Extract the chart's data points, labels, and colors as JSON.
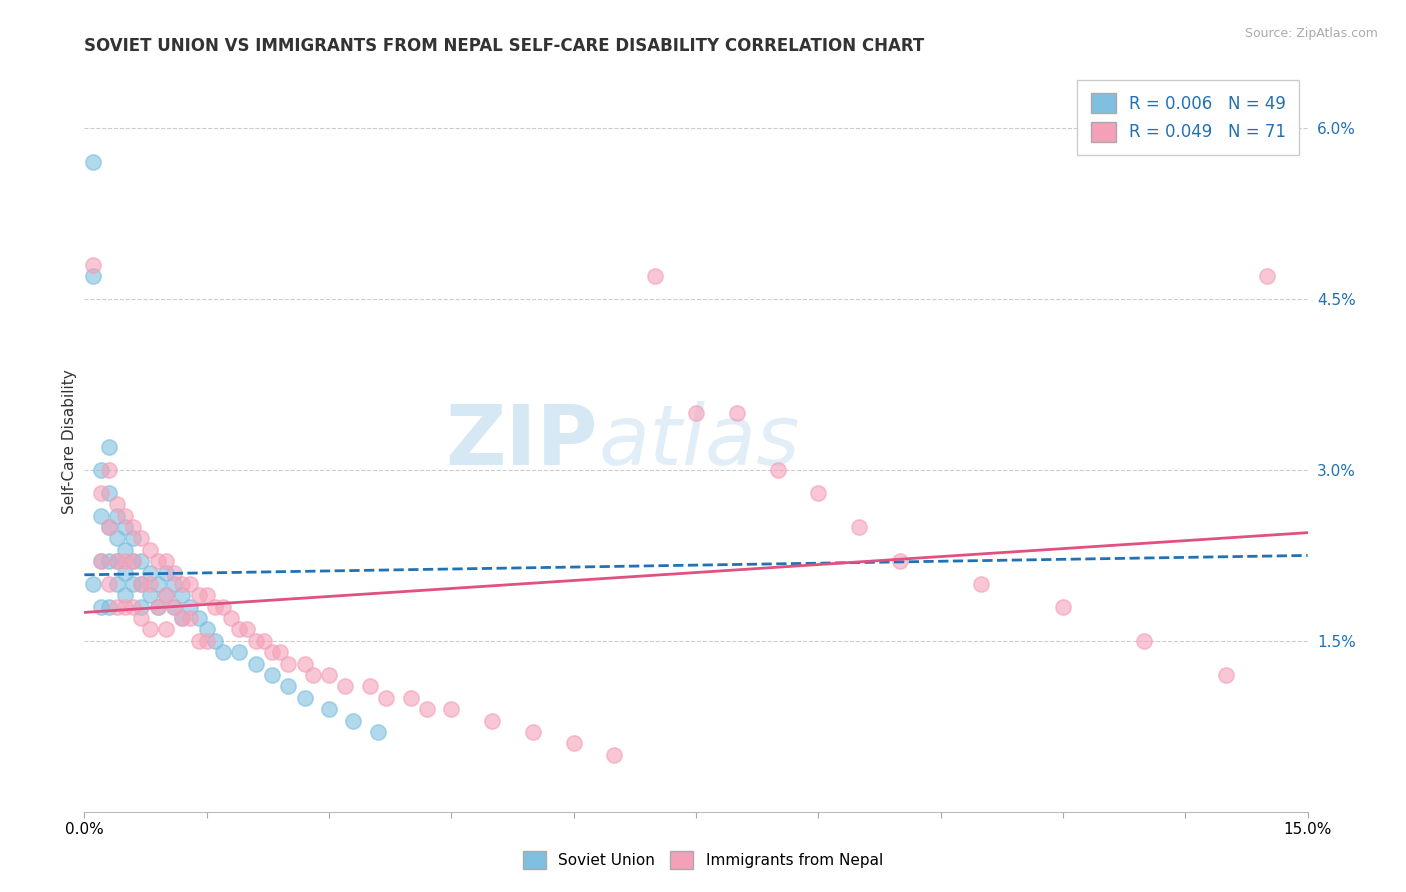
{
  "title": "SOVIET UNION VS IMMIGRANTS FROM NEPAL SELF-CARE DISABILITY CORRELATION CHART",
  "source": "Source: ZipAtlas.com",
  "ylabel": "Self-Care Disability",
  "xlim": [
    0.0,
    0.15
  ],
  "ylim": [
    0.0,
    0.065
  ],
  "blue_color": "#7fbfdf",
  "pink_color": "#f4a0b8",
  "blue_line_color": "#2171b5",
  "pink_line_color": "#e05080",
  "legend_R_blue": "R = 0.006",
  "legend_N_blue": "N = 49",
  "legend_R_pink": "R = 0.049",
  "legend_N_pink": "N = 71",
  "blue_scatter_x": [
    0.001,
    0.001,
    0.001,
    0.002,
    0.002,
    0.002,
    0.002,
    0.003,
    0.003,
    0.003,
    0.003,
    0.003,
    0.004,
    0.004,
    0.004,
    0.004,
    0.005,
    0.005,
    0.005,
    0.005,
    0.006,
    0.006,
    0.006,
    0.007,
    0.007,
    0.007,
    0.008,
    0.008,
    0.009,
    0.009,
    0.01,
    0.01,
    0.011,
    0.011,
    0.012,
    0.012,
    0.013,
    0.014,
    0.015,
    0.016,
    0.017,
    0.019,
    0.021,
    0.023,
    0.025,
    0.027,
    0.03,
    0.033,
    0.036
  ],
  "blue_scatter_y": [
    0.057,
    0.047,
    0.02,
    0.03,
    0.026,
    0.022,
    0.018,
    0.032,
    0.028,
    0.025,
    0.022,
    0.018,
    0.026,
    0.024,
    0.022,
    0.02,
    0.025,
    0.023,
    0.021,
    0.019,
    0.024,
    0.022,
    0.02,
    0.022,
    0.02,
    0.018,
    0.021,
    0.019,
    0.02,
    0.018,
    0.021,
    0.019,
    0.02,
    0.018,
    0.019,
    0.017,
    0.018,
    0.017,
    0.016,
    0.015,
    0.014,
    0.014,
    0.013,
    0.012,
    0.011,
    0.01,
    0.009,
    0.008,
    0.007
  ],
  "pink_scatter_x": [
    0.001,
    0.002,
    0.002,
    0.003,
    0.003,
    0.003,
    0.004,
    0.004,
    0.004,
    0.005,
    0.005,
    0.005,
    0.006,
    0.006,
    0.006,
    0.007,
    0.007,
    0.007,
    0.008,
    0.008,
    0.008,
    0.009,
    0.009,
    0.01,
    0.01,
    0.01,
    0.011,
    0.011,
    0.012,
    0.012,
    0.013,
    0.013,
    0.014,
    0.014,
    0.015,
    0.015,
    0.016,
    0.017,
    0.018,
    0.019,
    0.02,
    0.021,
    0.022,
    0.023,
    0.024,
    0.025,
    0.027,
    0.028,
    0.03,
    0.032,
    0.035,
    0.037,
    0.04,
    0.042,
    0.045,
    0.05,
    0.055,
    0.06,
    0.065,
    0.07,
    0.075,
    0.08,
    0.085,
    0.09,
    0.095,
    0.1,
    0.11,
    0.12,
    0.13,
    0.14,
    0.145
  ],
  "pink_scatter_y": [
    0.048,
    0.028,
    0.022,
    0.03,
    0.025,
    0.02,
    0.027,
    0.022,
    0.018,
    0.026,
    0.022,
    0.018,
    0.025,
    0.022,
    0.018,
    0.024,
    0.02,
    0.017,
    0.023,
    0.02,
    0.016,
    0.022,
    0.018,
    0.022,
    0.019,
    0.016,
    0.021,
    0.018,
    0.02,
    0.017,
    0.02,
    0.017,
    0.019,
    0.015,
    0.019,
    0.015,
    0.018,
    0.018,
    0.017,
    0.016,
    0.016,
    0.015,
    0.015,
    0.014,
    0.014,
    0.013,
    0.013,
    0.012,
    0.012,
    0.011,
    0.011,
    0.01,
    0.01,
    0.009,
    0.009,
    0.008,
    0.007,
    0.006,
    0.005,
    0.047,
    0.035,
    0.035,
    0.03,
    0.028,
    0.025,
    0.022,
    0.02,
    0.018,
    0.015,
    0.012,
    0.047
  ],
  "blue_trend_x": [
    0.0,
    0.15
  ],
  "blue_trend_y": [
    0.0208,
    0.0225
  ],
  "pink_trend_x": [
    0.0,
    0.15
  ],
  "pink_trend_y": [
    0.0175,
    0.0245
  ],
  "ytick_pos": [
    0.0,
    0.015,
    0.03,
    0.045,
    0.06
  ],
  "ytick_labels": [
    "",
    "1.5%",
    "3.0%",
    "4.5%",
    "6.0%"
  ]
}
